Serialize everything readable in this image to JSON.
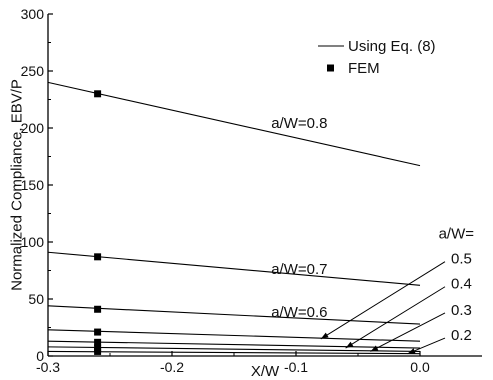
{
  "chart_data": {
    "type": "line",
    "xlabel": "X/W",
    "ylabel": "Normalized Compliance, EBV/P",
    "xlim": [
      -0.3,
      0.05
    ],
    "ylim": [
      0,
      300
    ],
    "x_ticks": [
      "-0.3",
      "-0.2",
      "-0.1",
      "0.0"
    ],
    "x_tick_values": [
      -0.3,
      -0.2,
      -0.1,
      0.0
    ],
    "y_ticks": [
      "0",
      "50",
      "100",
      "150",
      "200",
      "250",
      "300"
    ],
    "y_tick_values": [
      0,
      50,
      100,
      150,
      200,
      250,
      300
    ],
    "legend": {
      "placement": "top-right",
      "entries": [
        {
          "label": "Using Eq. (8)",
          "marker": "line"
        },
        {
          "label": "FEM",
          "marker": "square"
        }
      ]
    },
    "series": [
      {
        "name": "a/W=0.8",
        "x": [
          -0.3,
          0.0
        ],
        "y": [
          240,
          167
        ],
        "fem": {
          "x": [
            -0.26
          ],
          "y": [
            230
          ]
        }
      },
      {
        "name": "a/W=0.7",
        "x": [
          -0.3,
          0.0
        ],
        "y": [
          91,
          62
        ],
        "fem": {
          "x": [
            -0.26
          ],
          "y": [
            87
          ]
        }
      },
      {
        "name": "a/W=0.6",
        "x": [
          -0.3,
          0.0
        ],
        "y": [
          44,
          28
        ],
        "fem": {
          "x": [
            -0.26
          ],
          "y": [
            41
          ]
        }
      },
      {
        "name": "a/W=0.5",
        "x": [
          -0.3,
          0.0
        ],
        "y": [
          23,
          13
        ],
        "fem": {
          "x": [
            -0.26
          ],
          "y": [
            21
          ]
        }
      },
      {
        "name": "a/W=0.4",
        "x": [
          -0.3,
          0.0
        ],
        "y": [
          13,
          7
        ],
        "fem": {
          "x": [
            -0.26
          ],
          "y": [
            12
          ]
        }
      },
      {
        "name": "a/W=0.3",
        "x": [
          -0.3,
          0.0
        ],
        "y": [
          8,
          4
        ],
        "fem": {
          "x": [
            -0.26
          ],
          "y": [
            7
          ]
        }
      },
      {
        "name": "a/W=0.2",
        "x": [
          -0.3,
          0.0
        ],
        "y": [
          4,
          2
        ],
        "fem": {
          "x": [
            -0.26
          ],
          "y": [
            4
          ]
        }
      }
    ],
    "annotations": {
      "inline": [
        {
          "text": "a/W=0.8",
          "x": -0.12,
          "y": 200
        },
        {
          "text": "a/W=0.7",
          "x": -0.12,
          "y": 72
        },
        {
          "text": "a/W=0.6",
          "x": -0.12,
          "y": 34
        }
      ],
      "header": {
        "text": "a/W=",
        "x": 0.015,
        "y": 103
      },
      "callouts": [
        {
          "text": "0.5",
          "x": 0.025,
          "y": 81,
          "tip_x": -0.08,
          "tip_y": 15
        },
        {
          "text": "0.4",
          "x": 0.025,
          "y": 59,
          "tip_x": -0.06,
          "tip_y": 7
        },
        {
          "text": "0.3",
          "x": 0.025,
          "y": 36,
          "tip_x": -0.04,
          "tip_y": 4
        },
        {
          "text": "0.2",
          "x": 0.025,
          "y": 14,
          "tip_x": -0.01,
          "tip_y": 2
        }
      ]
    }
  }
}
